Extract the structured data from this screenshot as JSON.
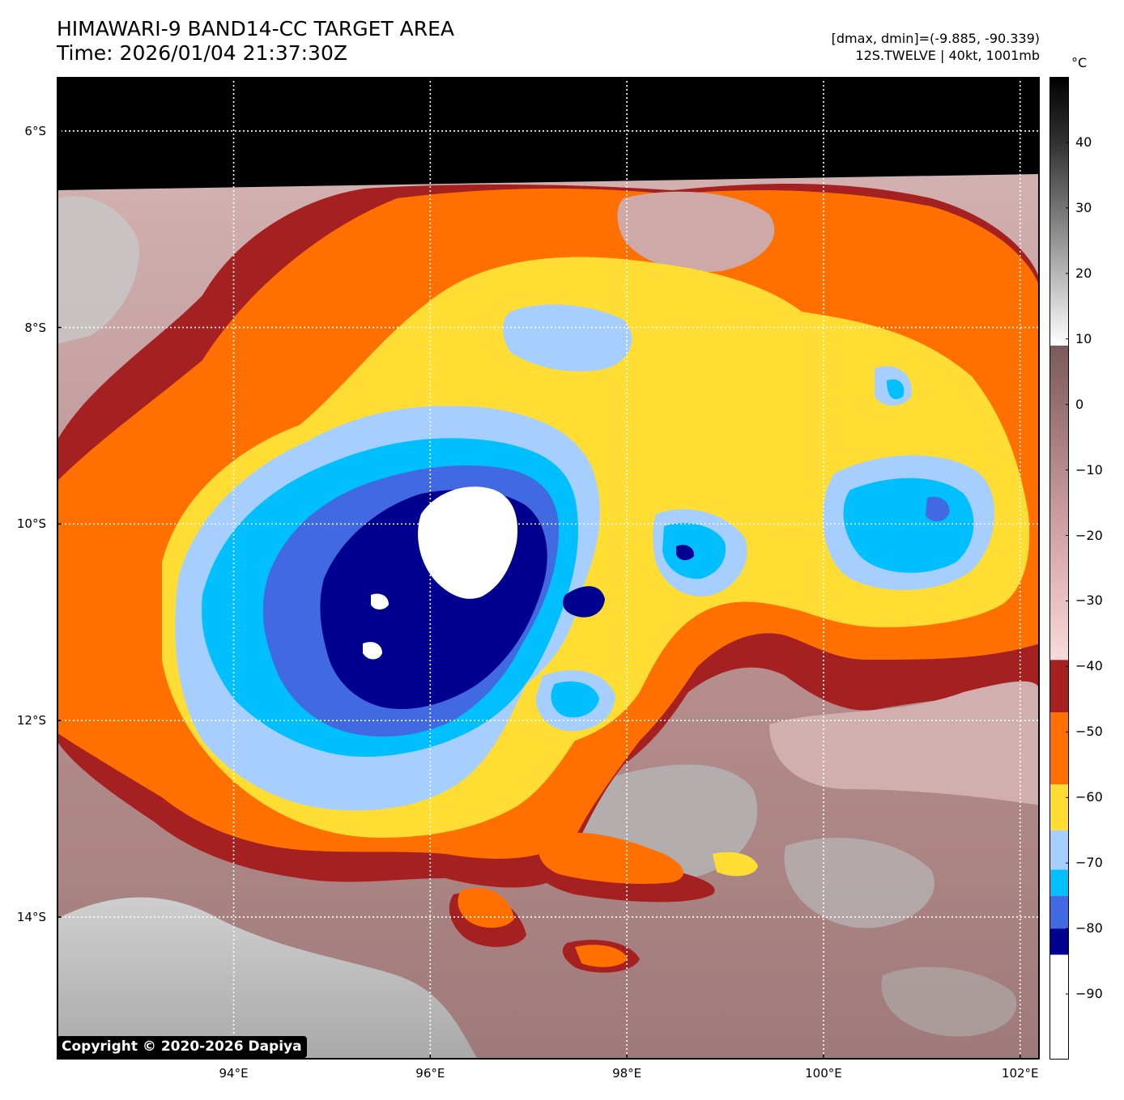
{
  "title": {
    "line1": "HIMAWARI-9 BAND14-CC TARGET AREA",
    "line2": "Time: 2026/01/04 21:37:30Z"
  },
  "info": {
    "range": "[dmax, dmin]=(-9.885, -90.339)",
    "storm": "12S.TWELVE | 40kt, 1001mb"
  },
  "map": {
    "lon_range": [
      92.2,
      102.2
    ],
    "lat_range": [
      -15.45,
      -5.45
    ],
    "lat_ticks": [
      {
        "value": -6,
        "label": "6°S"
      },
      {
        "value": -8,
        "label": "8°S"
      },
      {
        "value": -10,
        "label": "10°S"
      },
      {
        "value": -12,
        "label": "12°S"
      },
      {
        "value": -14,
        "label": "14°S"
      }
    ],
    "lon_ticks": [
      {
        "value": 94,
        "label": "94°E"
      },
      {
        "value": 96,
        "label": "96°E"
      },
      {
        "value": 98,
        "label": "98°E"
      },
      {
        "value": 100,
        "label": "100°E"
      },
      {
        "value": 102,
        "label": "102°E"
      }
    ],
    "grid": true
  },
  "colorbar": {
    "unit": "°C",
    "range": [
      -100,
      50
    ],
    "ticks": [
      {
        "value": 40,
        "label": "40"
      },
      {
        "value": 30,
        "label": "30"
      },
      {
        "value": 20,
        "label": "20"
      },
      {
        "value": 10,
        "label": "10"
      },
      {
        "value": 0,
        "label": "0"
      },
      {
        "value": -10,
        "label": "−10"
      },
      {
        "value": -20,
        "label": "−20"
      },
      {
        "value": -30,
        "label": "−30"
      },
      {
        "value": -40,
        "label": "−40"
      },
      {
        "value": -50,
        "label": "−50"
      },
      {
        "value": -60,
        "label": "−60"
      },
      {
        "value": -70,
        "label": "−70"
      },
      {
        "value": -80,
        "label": "−80"
      },
      {
        "value": -90,
        "label": "−90"
      }
    ],
    "segments": [
      {
        "from": -100,
        "to": -84,
        "color": "#ffffff"
      },
      {
        "from": -84,
        "to": -80,
        "color": "#000090"
      },
      {
        "from": -80,
        "to": -75,
        "color": "#4169e1"
      },
      {
        "from": -75,
        "to": -71,
        "color": "#00bfff"
      },
      {
        "from": -71,
        "to": -65,
        "color": "#a6cfff"
      },
      {
        "from": -65,
        "to": -58,
        "color": "#ffdd33"
      },
      {
        "from": -58,
        "to": -47,
        "color": "#ff7000"
      },
      {
        "from": -47,
        "to": -39,
        "color": "#a52020"
      }
    ],
    "gradients": [
      {
        "from": -39,
        "to": 9,
        "stops": [
          "#f8dada",
          "#e3b8b8",
          "#c49898",
          "#a07878",
          "#7a5a5a"
        ]
      },
      {
        "from": 9,
        "to": 50,
        "stops": [
          "#ffffff",
          "#bbbbbb",
          "#777777",
          "#333333",
          "#000000"
        ]
      }
    ]
  },
  "colors": {
    "no_data": "#000000",
    "warm_surface": "#c4a4a4",
    "cloud_free_gray": "#b8b8b8",
    "orange": "#ff7000",
    "dark_red": "#a52020",
    "yellow": "#ffdd33",
    "light_blue": "#a6cfff",
    "cyan": "#00bfff",
    "blue": "#4169e1",
    "navy": "#000090",
    "white_core": "#ffffff"
  },
  "copyright": "Copyright © 2020-2026 Dapiya"
}
